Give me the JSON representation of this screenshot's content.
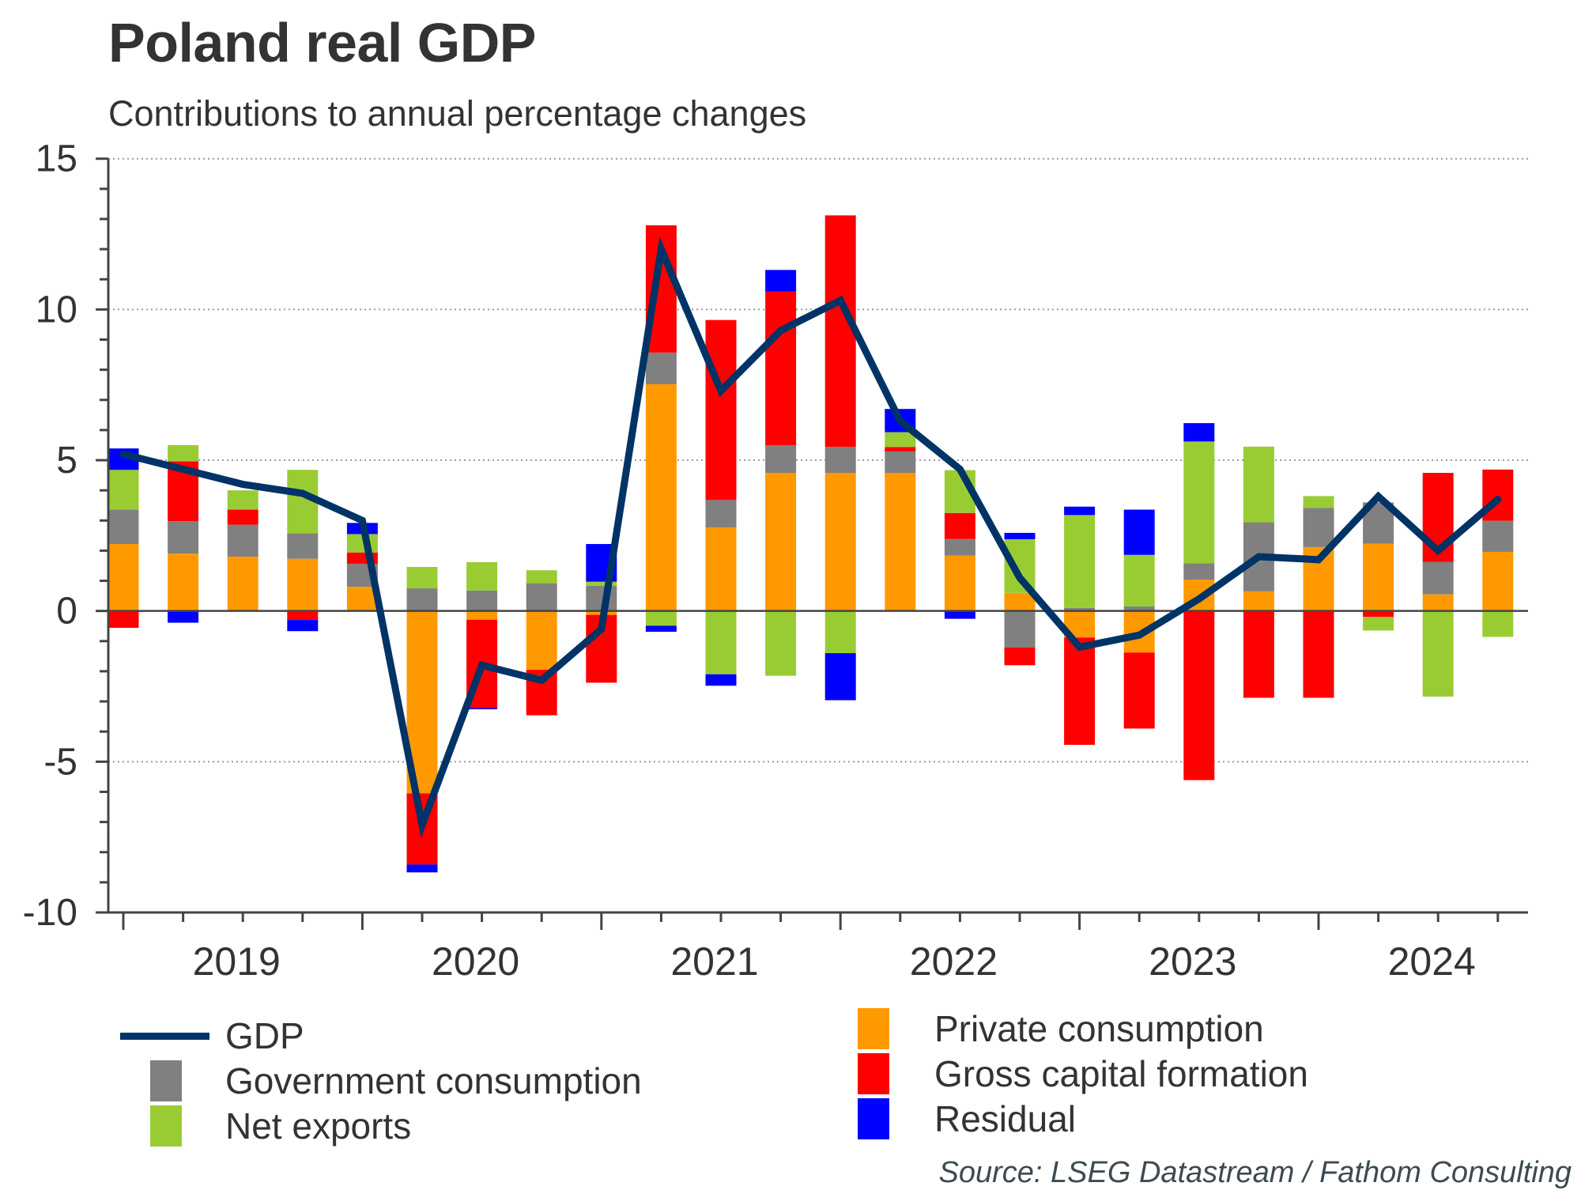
{
  "title": "Poland real GDP",
  "subtitle": "Contributions to annual percentage changes",
  "source": "Source: LSEG Datastream / Fathom Consulting",
  "chart_data": {
    "type": "bar",
    "stacked": true,
    "title": "Poland real GDP",
    "subtitle": "Contributions to annual percentage changes",
    "xlabel": "",
    "ylabel": "",
    "ylim": [
      -10,
      15
    ],
    "yticks": [
      15,
      10,
      5,
      0,
      -5,
      -10
    ],
    "grid": "horizontal dotted",
    "legend_placement": "bottom",
    "x": [
      "2019Q1",
      "2019Q2",
      "2019Q3",
      "2019Q4",
      "2020Q1",
      "2020Q2",
      "2020Q3",
      "2020Q4",
      "2021Q1",
      "2021Q2",
      "2021Q3",
      "2021Q4",
      "2022Q1",
      "2022Q2",
      "2022Q3",
      "2022Q4",
      "2023Q1",
      "2023Q2",
      "2023Q3",
      "2023Q4",
      "2024Q1",
      "2024Q2",
      "2024Q3",
      "2024Q4"
    ],
    "year_labels": [
      "2019",
      "2020",
      "2021",
      "2022",
      "2023",
      "2024"
    ],
    "series": [
      {
        "name": "Private consumption",
        "kind": "bar",
        "color": "#ff9900",
        "values": [
          2.22,
          1.9,
          1.8,
          1.73,
          0.8,
          -6.05,
          -0.29,
          -1.95,
          -0.13,
          7.52,
          2.77,
          4.58,
          4.58,
          4.58,
          1.84,
          0.6,
          -0.88,
          -1.38,
          1.04,
          0.65,
          2.12,
          2.23,
          0.55,
          1.96
        ]
      },
      {
        "name": "Government consumption",
        "kind": "bar",
        "color": "#808080",
        "values": [
          1.14,
          1.08,
          1.06,
          0.85,
          0.76,
          0.75,
          0.68,
          0.92,
          0.84,
          1.05,
          0.91,
          0.92,
          0.86,
          0.71,
          0.55,
          -1.21,
          0.1,
          0.15,
          0.54,
          2.29,
          1.3,
          1.37,
          1.08,
          1.03
        ]
      },
      {
        "name": "Gross capital formation",
        "kind": "bar",
        "color": "#ff0000",
        "values": [
          -0.56,
          1.98,
          0.5,
          -0.3,
          0.38,
          -2.36,
          -2.93,
          -1.51,
          -2.25,
          4.22,
          5.97,
          5.1,
          7.68,
          0.15,
          0.86,
          -0.59,
          -3.56,
          -2.52,
          -5.61,
          -2.88,
          -2.88,
          -0.2,
          2.95,
          1.7
        ]
      },
      {
        "name": "Net exports",
        "kind": "bar",
        "color": "#99cc33",
        "values": [
          1.32,
          0.54,
          0.64,
          2.1,
          0.61,
          0.71,
          0.94,
          0.43,
          0.13,
          -0.49,
          -2.1,
          -2.15,
          -1.4,
          0.49,
          1.42,
          1.78,
          3.08,
          1.71,
          4.04,
          2.51,
          0.39,
          -0.45,
          -2.84,
          -0.86
        ]
      },
      {
        "name": "Residual",
        "kind": "bar",
        "color": "#0000ff",
        "values": [
          0.71,
          -0.39,
          0.0,
          -0.37,
          0.37,
          -0.26,
          -0.04,
          0.0,
          1.25,
          -0.2,
          -0.38,
          0.71,
          -1.56,
          0.77,
          -0.26,
          0.21,
          0.28,
          1.5,
          0.61,
          0.0,
          0.0,
          0.0,
          0.0,
          0.0
        ]
      },
      {
        "name": "GDP",
        "kind": "line",
        "color": "#003366",
        "values": [
          5.2,
          4.7,
          4.2,
          3.9,
          3.0,
          -7.1,
          -1.8,
          -2.3,
          -0.6,
          12.0,
          7.3,
          9.3,
          10.3,
          6.3,
          4.7,
          1.1,
          -1.2,
          -0.8,
          0.4,
          1.8,
          1.7,
          3.8,
          2.0,
          3.7
        ]
      }
    ]
  },
  "legend": [
    {
      "label": "GDP",
      "type": "line",
      "color": "#003366"
    },
    {
      "label": "Government consumption",
      "type": "box",
      "color": "#808080"
    },
    {
      "label": "Net exports",
      "type": "box",
      "color": "#99cc33"
    },
    {
      "label": "Private consumption",
      "type": "box",
      "color": "#ff9900"
    },
    {
      "label": "Gross capital formation",
      "type": "box",
      "color": "#ff0000"
    },
    {
      "label": "Residual",
      "type": "box",
      "color": "#0000ff"
    }
  ]
}
